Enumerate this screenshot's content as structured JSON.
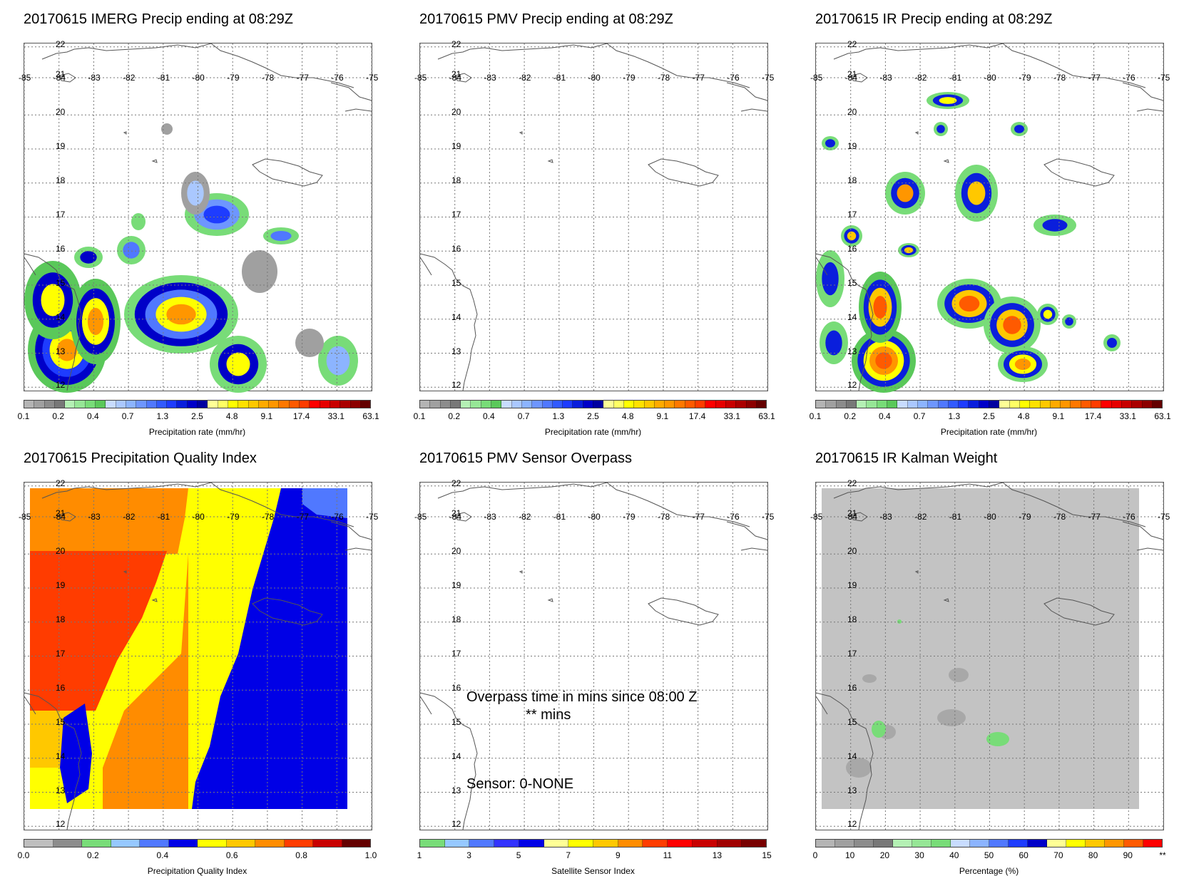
{
  "panels": [
    {
      "id": "imerg",
      "title": "20170615 IMERG Precip ending at 08:29Z",
      "cbar_label": "Precipitation rate (mm/hr)",
      "cbar": "precip"
    },
    {
      "id": "pmv",
      "title": "20170615 PMV Precip ending at 08:29Z",
      "cbar_label": "Precipitation rate (mm/hr)",
      "cbar": "precip"
    },
    {
      "id": "ir",
      "title": "20170615 IR Precip ending at 08:29Z",
      "cbar_label": "Precipitation rate (mm/hr)",
      "cbar": "precip"
    },
    {
      "id": "pqi",
      "title": "20170615 Precipitation Quality Index",
      "cbar_label": "Precipitation Quality Index",
      "cbar": "pqi"
    },
    {
      "id": "sensor",
      "title": "20170615 PMV Sensor Overpass",
      "cbar_label": "Satellite Sensor Index",
      "cbar": "sensor"
    },
    {
      "id": "kalman",
      "title": "20170615 IR Kalman Weight",
      "cbar_label": "Percentage (%)",
      "cbar": "pct"
    }
  ],
  "lon_labels": [
    "-85",
    "-84",
    "-83",
    "-82",
    "-81",
    "-80",
    "-79",
    "-78",
    "-77",
    "-76",
    "-75"
  ],
  "lat_labels": [
    "22",
    "21",
    "20",
    "19",
    "18",
    "17",
    "16",
    "15",
    "14",
    "13",
    "12"
  ],
  "colorbars": {
    "precip": {
      "colors": [
        "#b4b4b4",
        "#a0a0a0",
        "#8c8c8c",
        "#787878",
        "#b4f0b4",
        "#96e696",
        "#78dc78",
        "#5ac85a",
        "#c8dcff",
        "#aac8ff",
        "#8cb4ff",
        "#6e96ff",
        "#5078ff",
        "#325aff",
        "#1e3cff",
        "#0a1edc",
        "#0000c8",
        "#0000a0",
        "#ffff96",
        "#ffff64",
        "#ffff00",
        "#ffe100",
        "#ffc800",
        "#ffaa00",
        "#ff9600",
        "#ff7800",
        "#ff5a00",
        "#ff3c00",
        "#ff0000",
        "#e60000",
        "#c80000",
        "#aa0000",
        "#8c0000",
        "#640000"
      ],
      "ticks": [
        "0.1",
        "0.2",
        "0.4",
        "0.7",
        "1.3",
        "2.5",
        "4.8",
        "9.1",
        "17.4",
        "33.1",
        "63.1"
      ]
    },
    "pqi": {
      "colors": [
        "#bebebe",
        "#8c8c8c",
        "#78dc78",
        "#96c8ff",
        "#5078ff",
        "#0000e6",
        "#ffff00",
        "#ffc800",
        "#ff8c00",
        "#ff3c00",
        "#c80000",
        "#640000"
      ],
      "ticks": [
        "0.0",
        "0.2",
        "0.4",
        "0.6",
        "0.8",
        "1.0"
      ]
    },
    "sensor": {
      "colors": [
        "#78dc78",
        "#96c8ff",
        "#5078ff",
        "#3232ff",
        "#0000e6",
        "#ffff96",
        "#ffff00",
        "#ffc800",
        "#ff8c00",
        "#ff3c00",
        "#ff0000",
        "#c80000",
        "#a00000",
        "#780000"
      ],
      "ticks": [
        "1",
        "3",
        "5",
        "7",
        "9",
        "11",
        "13",
        "15"
      ]
    },
    "pct": {
      "colors": [
        "#b4b4b4",
        "#a0a0a0",
        "#8c8c8c",
        "#787878",
        "#b4f0b4",
        "#96e696",
        "#78dc78",
        "#c8dcff",
        "#8cb4ff",
        "#5078ff",
        "#1e3cff",
        "#0000c8",
        "#ffff96",
        "#ffff00",
        "#ffc800",
        "#ff9600",
        "#ff5a00",
        "#ff0000"
      ],
      "ticks": [
        "0",
        "10",
        "20",
        "30",
        "40",
        "50",
        "60",
        "70",
        "80",
        "90",
        "**"
      ]
    }
  },
  "sensor_text": {
    "line1": "Overpass time in mins since 08:00 Z",
    "line2": "** mins",
    "line3": "Sensor:   0-NONE"
  },
  "colors": {
    "coastline": "#555555",
    "grid": "#777777",
    "kalman_fill": "#c3c3c3"
  }
}
